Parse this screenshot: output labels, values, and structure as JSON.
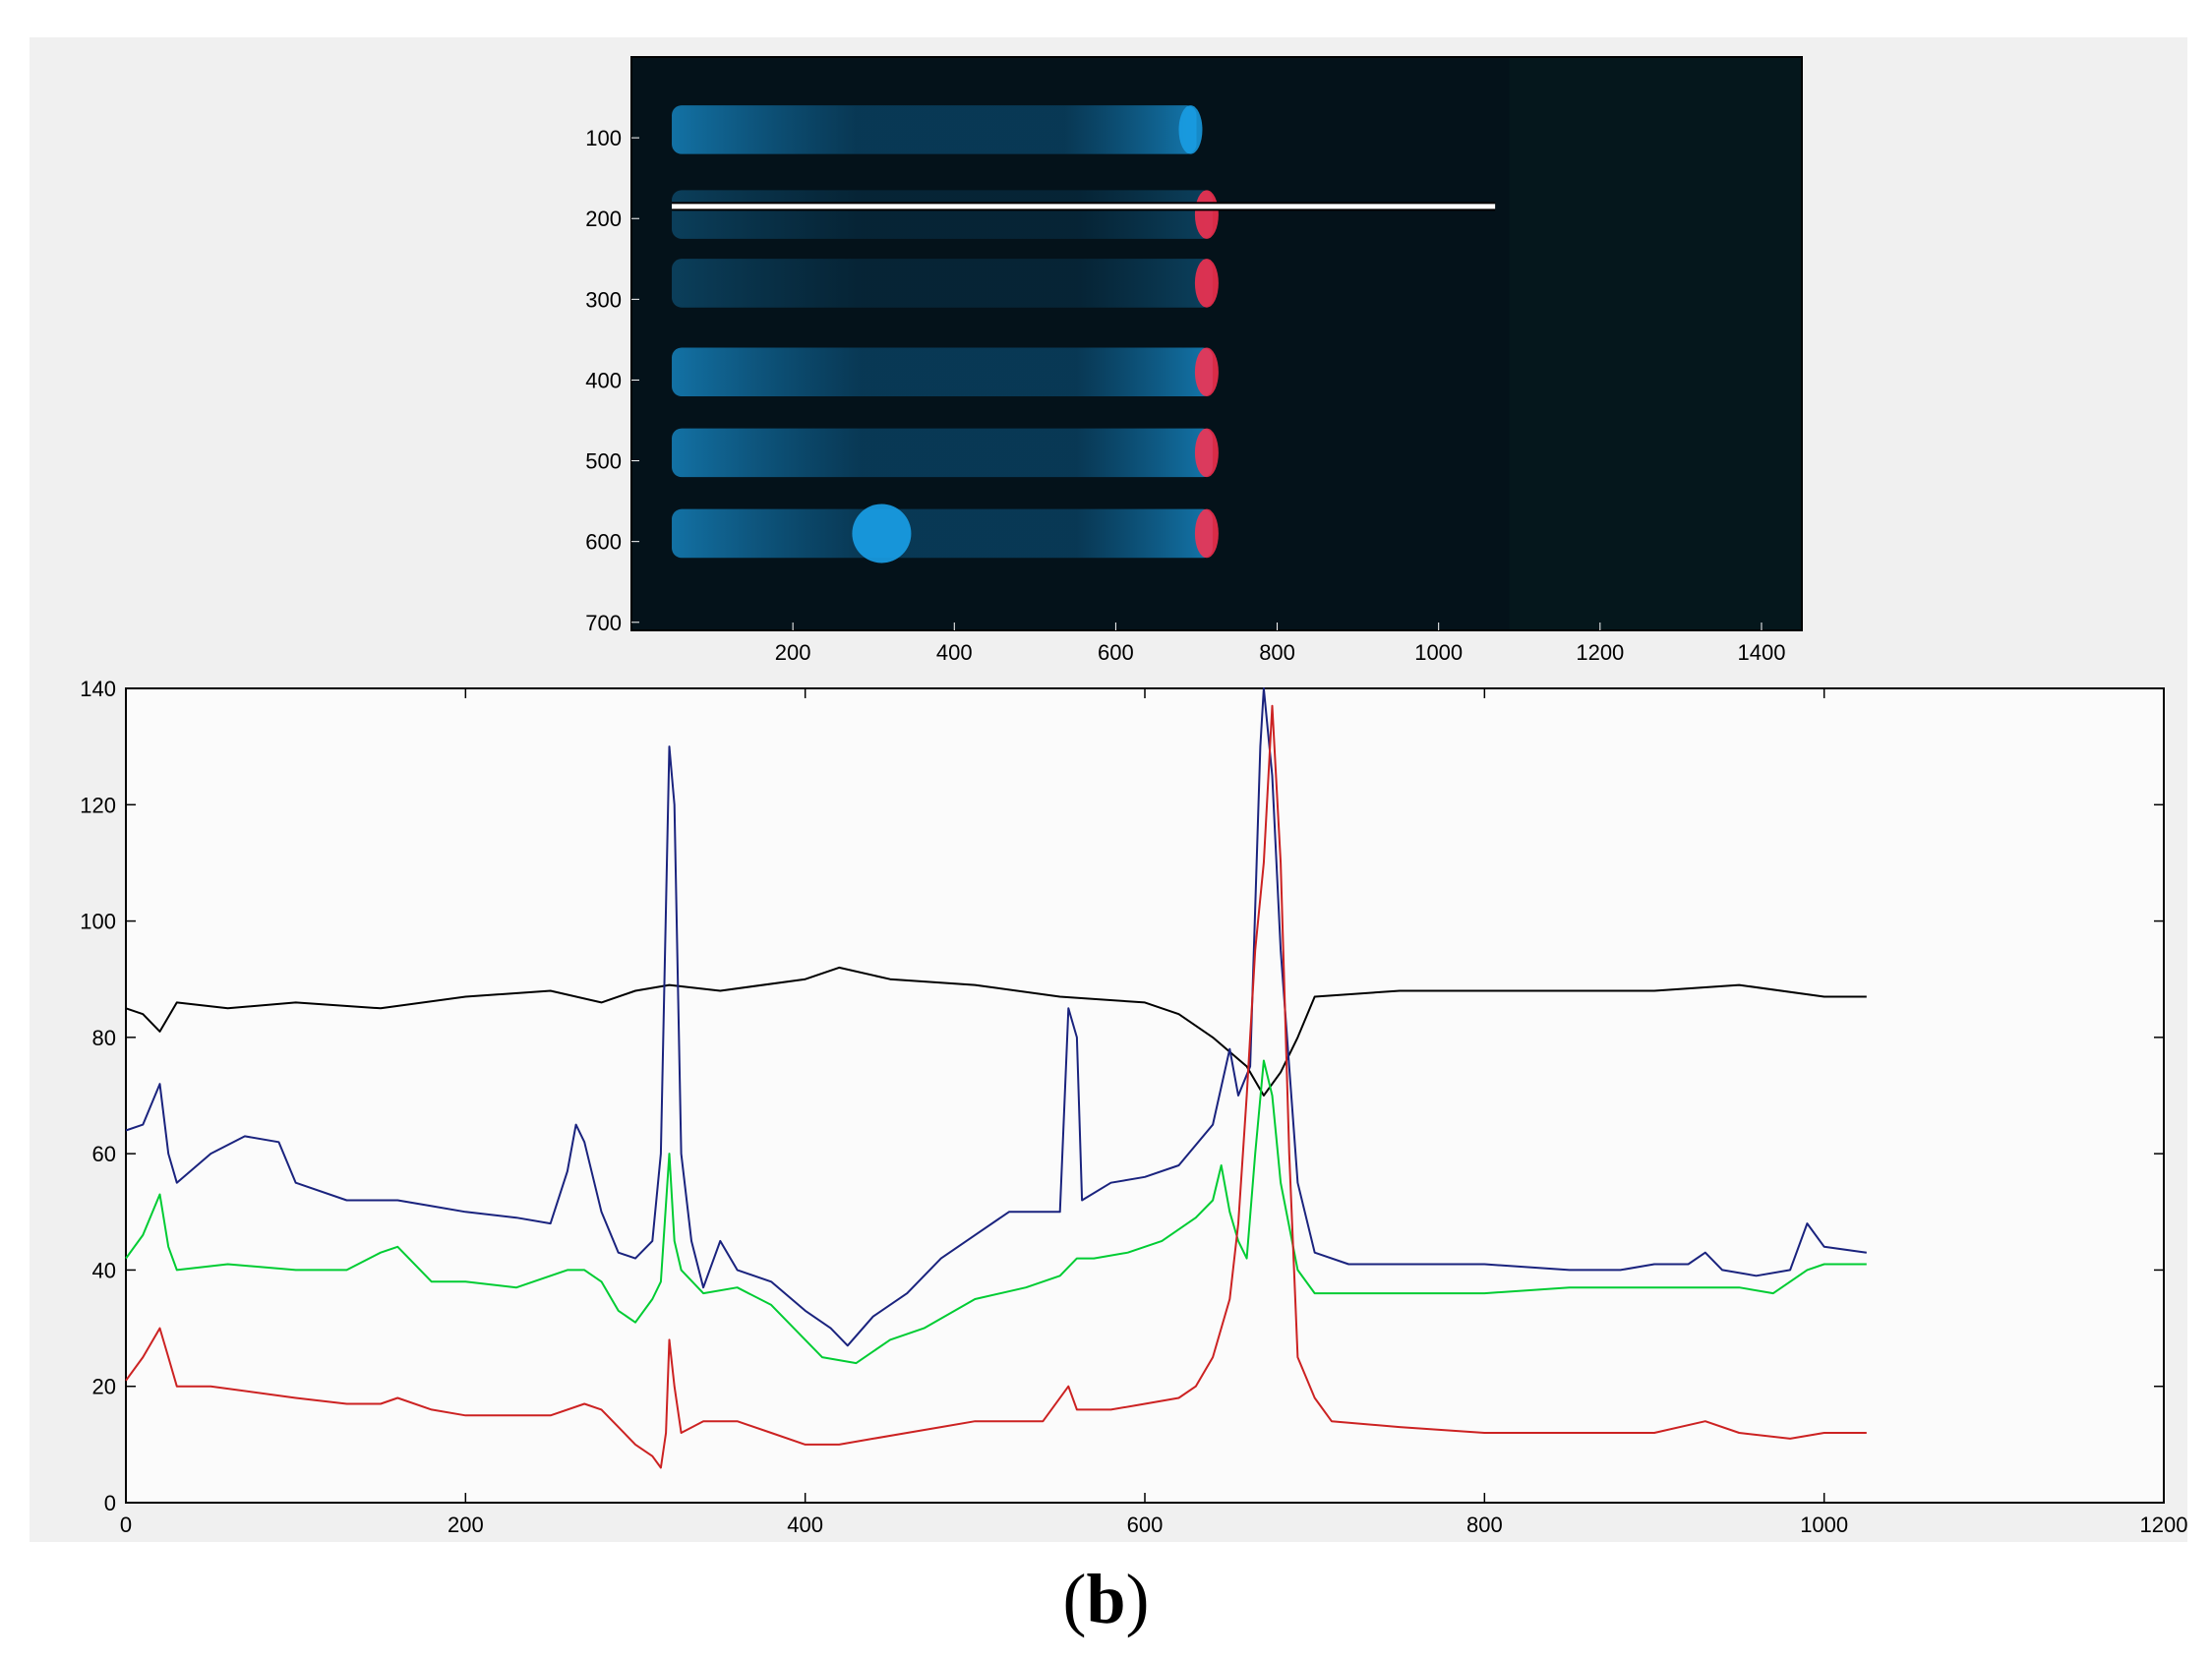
{
  "panel_label": {
    "open": "(",
    "letter": "b",
    "close": ")"
  },
  "colors": {
    "background": "#f0f0f0",
    "gel_background": "#04121a",
    "lane_blue": "#1aa0e8",
    "band_red": "#ff3050",
    "trace_black": "#000000",
    "trace_blue": "#1a237e",
    "trace_green": "#00cc33",
    "trace_red": "#cc2222"
  },
  "chart_data": [
    {
      "type": "image",
      "description_axis": "gel image axes",
      "xlabel": "",
      "ylabel": "",
      "xlim": [
        0,
        1450
      ],
      "ylim": [
        0,
        710
      ],
      "x_ticks": [
        200,
        400,
        600,
        800,
        1000,
        1200,
        1400
      ],
      "y_ticks": [
        100,
        200,
        300,
        400,
        500,
        600,
        700
      ],
      "lanes": [
        {
          "y": 90,
          "x_start": 50,
          "x_end": 700,
          "end_band": "blue"
        },
        {
          "y": 195,
          "x_start": 50,
          "x_end": 720,
          "end_band": "red"
        },
        {
          "y": 280,
          "x_start": 50,
          "x_end": 720,
          "end_band": "red"
        },
        {
          "y": 390,
          "x_start": 50,
          "x_end": 720,
          "end_band": "red"
        },
        {
          "y": 490,
          "x_start": 50,
          "x_end": 720,
          "end_band": "red"
        },
        {
          "y": 590,
          "x_start": 50,
          "x_end": 720,
          "end_band": "red"
        }
      ],
      "profile_line": {
        "y": 185,
        "x_start": 50,
        "x_end": 1070
      }
    },
    {
      "type": "line",
      "xlabel": "",
      "ylabel": "",
      "xlim": [
        0,
        1200
      ],
      "ylim": [
        0,
        140
      ],
      "x_ticks": [
        0,
        200,
        400,
        600,
        800,
        1000,
        1200
      ],
      "y_ticks": [
        0,
        20,
        40,
        60,
        80,
        100,
        120,
        140
      ],
      "grid": false,
      "series": [
        {
          "color": "#000000",
          "points": [
            [
              0,
              85
            ],
            [
              10,
              84
            ],
            [
              20,
              81
            ],
            [
              30,
              86
            ],
            [
              60,
              85
            ],
            [
              100,
              86
            ],
            [
              150,
              85
            ],
            [
              200,
              87
            ],
            [
              250,
              88
            ],
            [
              280,
              86
            ],
            [
              300,
              88
            ],
            [
              320,
              89
            ],
            [
              350,
              88
            ],
            [
              400,
              90
            ],
            [
              420,
              92
            ],
            [
              450,
              90
            ],
            [
              500,
              89
            ],
            [
              550,
              87
            ],
            [
              600,
              86
            ],
            [
              620,
              84
            ],
            [
              640,
              80
            ],
            [
              660,
              75
            ],
            [
              670,
              70
            ],
            [
              680,
              74
            ],
            [
              690,
              80
            ],
            [
              700,
              87
            ],
            [
              750,
              88
            ],
            [
              800,
              88
            ],
            [
              850,
              88
            ],
            [
              900,
              88
            ],
            [
              950,
              89
            ],
            [
              1000,
              87
            ],
            [
              1025,
              87
            ]
          ]
        },
        {
          "color": "#1a237e",
          "points": [
            [
              0,
              64
            ],
            [
              10,
              65
            ],
            [
              20,
              72
            ],
            [
              25,
              60
            ],
            [
              30,
              55
            ],
            [
              50,
              60
            ],
            [
              70,
              63
            ],
            [
              90,
              62
            ],
            [
              100,
              55
            ],
            [
              130,
              52
            ],
            [
              160,
              52
            ],
            [
              180,
              51
            ],
            [
              200,
              50
            ],
            [
              230,
              49
            ],
            [
              250,
              48
            ],
            [
              260,
              57
            ],
            [
              265,
              65
            ],
            [
              270,
              62
            ],
            [
              280,
              50
            ],
            [
              290,
              43
            ],
            [
              300,
              42
            ],
            [
              310,
              45
            ],
            [
              315,
              60
            ],
            [
              320,
              130
            ],
            [
              323,
              120
            ],
            [
              327,
              60
            ],
            [
              333,
              45
            ],
            [
              340,
              37
            ],
            [
              350,
              45
            ],
            [
              360,
              40
            ],
            [
              380,
              38
            ],
            [
              400,
              33
            ],
            [
              415,
              30
            ],
            [
              425,
              27
            ],
            [
              440,
              32
            ],
            [
              460,
              36
            ],
            [
              480,
              42
            ],
            [
              500,
              46
            ],
            [
              520,
              50
            ],
            [
              540,
              50
            ],
            [
              550,
              50
            ],
            [
              555,
              85
            ],
            [
              560,
              80
            ],
            [
              563,
              52
            ],
            [
              580,
              55
            ],
            [
              600,
              56
            ],
            [
              620,
              58
            ],
            [
              640,
              65
            ],
            [
              650,
              78
            ],
            [
              655,
              70
            ],
            [
              662,
              75
            ],
            [
              668,
              130
            ],
            [
              670,
              140
            ],
            [
              675,
              125
            ],
            [
              680,
              95
            ],
            [
              690,
              55
            ],
            [
              700,
              43
            ],
            [
              720,
              41
            ],
            [
              750,
              41
            ],
            [
              800,
              41
            ],
            [
              850,
              40
            ],
            [
              880,
              40
            ],
            [
              900,
              41
            ],
            [
              920,
              41
            ],
            [
              930,
              43
            ],
            [
              940,
              40
            ],
            [
              960,
              39
            ],
            [
              980,
              40
            ],
            [
              990,
              48
            ],
            [
              1000,
              44
            ],
            [
              1025,
              43
            ]
          ]
        },
        {
          "color": "#00cc33",
          "points": [
            [
              0,
              42
            ],
            [
              10,
              46
            ],
            [
              20,
              53
            ],
            [
              25,
              44
            ],
            [
              30,
              40
            ],
            [
              60,
              41
            ],
            [
              100,
              40
            ],
            [
              130,
              40
            ],
            [
              150,
              43
            ],
            [
              160,
              44
            ],
            [
              180,
              38
            ],
            [
              200,
              38
            ],
            [
              230,
              37
            ],
            [
              250,
              39
            ],
            [
              260,
              40
            ],
            [
              270,
              40
            ],
            [
              280,
              38
            ],
            [
              290,
              33
            ],
            [
              300,
              31
            ],
            [
              310,
              35
            ],
            [
              315,
              38
            ],
            [
              320,
              60
            ],
            [
              323,
              45
            ],
            [
              327,
              40
            ],
            [
              340,
              36
            ],
            [
              360,
              37
            ],
            [
              380,
              34
            ],
            [
              400,
              28
            ],
            [
              410,
              25
            ],
            [
              430,
              24
            ],
            [
              450,
              28
            ],
            [
              470,
              30
            ],
            [
              500,
              35
            ],
            [
              530,
              37
            ],
            [
              550,
              39
            ],
            [
              560,
              42
            ],
            [
              570,
              42
            ],
            [
              590,
              43
            ],
            [
              610,
              45
            ],
            [
              630,
              49
            ],
            [
              640,
              52
            ],
            [
              645,
              58
            ],
            [
              650,
              50
            ],
            [
              655,
              45
            ],
            [
              660,
              42
            ],
            [
              665,
              60
            ],
            [
              670,
              76
            ],
            [
              675,
              70
            ],
            [
              680,
              55
            ],
            [
              690,
              40
            ],
            [
              700,
              36
            ],
            [
              750,
              36
            ],
            [
              800,
              36
            ],
            [
              850,
              37
            ],
            [
              900,
              37
            ],
            [
              950,
              37
            ],
            [
              970,
              36
            ],
            [
              990,
              40
            ],
            [
              1000,
              41
            ],
            [
              1025,
              41
            ]
          ]
        },
        {
          "color": "#cc2222",
          "points": [
            [
              0,
              21
            ],
            [
              10,
              25
            ],
            [
              20,
              30
            ],
            [
              25,
              25
            ],
            [
              30,
              20
            ],
            [
              50,
              20
            ],
            [
              100,
              18
            ],
            [
              130,
              17
            ],
            [
              150,
              17
            ],
            [
              160,
              18
            ],
            [
              180,
              16
            ],
            [
              200,
              15
            ],
            [
              230,
              15
            ],
            [
              250,
              15
            ],
            [
              270,
              17
            ],
            [
              280,
              16
            ],
            [
              300,
              10
            ],
            [
              310,
              8
            ],
            [
              315,
              6
            ],
            [
              318,
              12
            ],
            [
              320,
              28
            ],
            [
              323,
              20
            ],
            [
              327,
              12
            ],
            [
              340,
              14
            ],
            [
              360,
              14
            ],
            [
              380,
              12
            ],
            [
              400,
              10
            ],
            [
              420,
              10
            ],
            [
              440,
              11
            ],
            [
              460,
              12
            ],
            [
              480,
              13
            ],
            [
              500,
              14
            ],
            [
              520,
              14
            ],
            [
              540,
              14
            ],
            [
              555,
              20
            ],
            [
              560,
              16
            ],
            [
              580,
              16
            ],
            [
              600,
              17
            ],
            [
              620,
              18
            ],
            [
              630,
              20
            ],
            [
              640,
              25
            ],
            [
              650,
              35
            ],
            [
              655,
              48
            ],
            [
              660,
              70
            ],
            [
              665,
              95
            ],
            [
              670,
              110
            ],
            [
              675,
              137
            ],
            [
              680,
              110
            ],
            [
              685,
              60
            ],
            [
              690,
              25
            ],
            [
              700,
              18
            ],
            [
              710,
              14
            ],
            [
              750,
              13
            ],
            [
              800,
              12
            ],
            [
              850,
              12
            ],
            [
              900,
              12
            ],
            [
              930,
              14
            ],
            [
              950,
              12
            ],
            [
              980,
              11
            ],
            [
              1000,
              12
            ],
            [
              1025,
              12
            ]
          ]
        }
      ]
    }
  ]
}
